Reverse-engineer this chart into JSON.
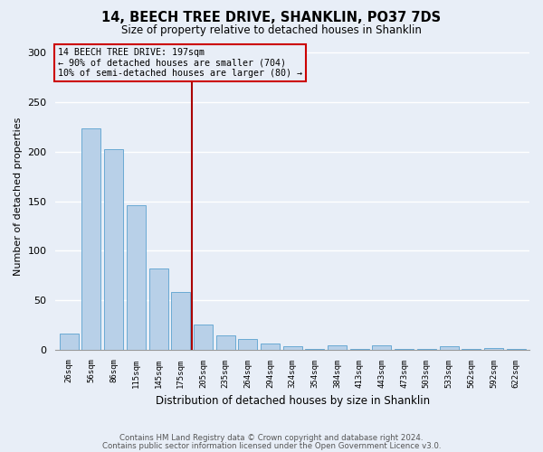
{
  "title": "14, BEECH TREE DRIVE, SHANKLIN, PO37 7DS",
  "subtitle": "Size of property relative to detached houses in Shanklin",
  "xlabel": "Distribution of detached houses by size in Shanklin",
  "ylabel": "Number of detached properties",
  "bar_labels": [
    "26sqm",
    "56sqm",
    "86sqm",
    "115sqm",
    "145sqm",
    "175sqm",
    "205sqm",
    "235sqm",
    "264sqm",
    "294sqm",
    "324sqm",
    "354sqm",
    "384sqm",
    "413sqm",
    "443sqm",
    "473sqm",
    "503sqm",
    "533sqm",
    "562sqm",
    "592sqm",
    "622sqm"
  ],
  "bar_values": [
    16,
    224,
    203,
    146,
    82,
    58,
    25,
    14,
    11,
    6,
    3,
    1,
    4,
    1,
    4,
    1,
    1,
    3,
    1,
    2,
    1
  ],
  "bar_color": "#b8d0e8",
  "bar_edge_color": "#6aaad4",
  "ylim": [
    0,
    310
  ],
  "yticks": [
    0,
    50,
    100,
    150,
    200,
    250,
    300
  ],
  "vline_x_idx": 6,
  "vline_color": "#aa0000",
  "annotation_title": "14 BEECH TREE DRIVE: 197sqm",
  "annotation_line1": "← 90% of detached houses are smaller (704)",
  "annotation_line2": "10% of semi-detached houses are larger (80) →",
  "annotation_box_color": "#cc0000",
  "footer1": "Contains HM Land Registry data © Crown copyright and database right 2024.",
  "footer2": "Contains public sector information licensed under the Open Government Licence v3.0.",
  "bg_color": "#e8eef7",
  "grid_color": "#ffffff"
}
